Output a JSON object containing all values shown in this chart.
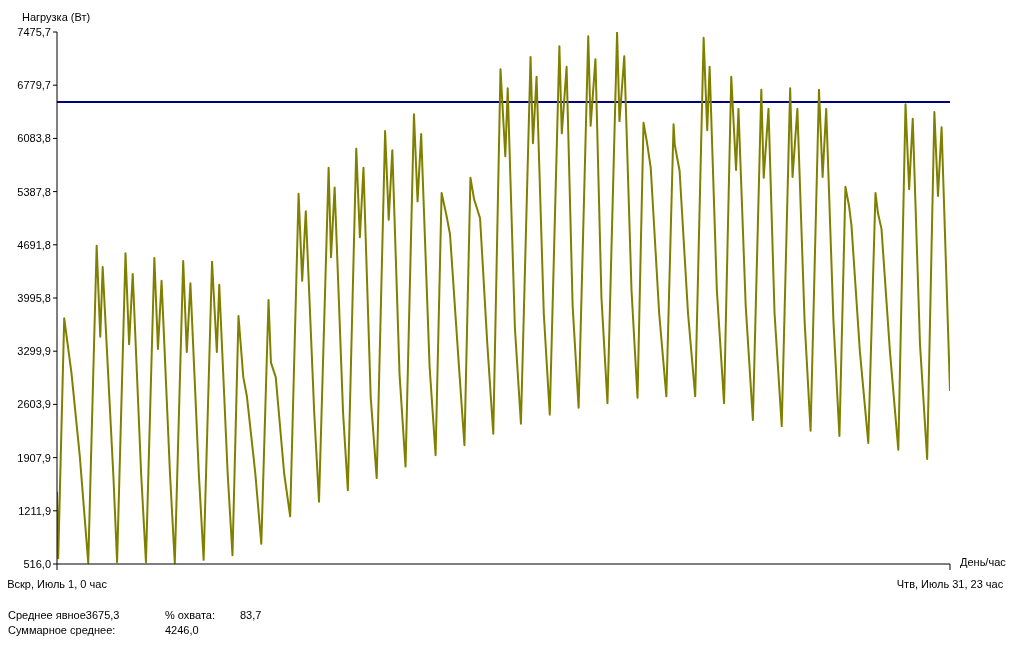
{
  "chart_data": {
    "type": "line",
    "ylabel": "Нагрузка (Вт)",
    "xlabel": "День/час",
    "categories": [
      "Вскр, Июль 1, 0 час",
      null,
      null,
      null,
      null,
      null,
      null,
      null,
      null,
      null,
      null,
      null,
      null,
      null,
      null,
      null,
      null,
      null,
      null,
      null,
      null,
      null,
      null,
      null,
      null,
      null,
      null,
      null,
      null,
      null,
      null,
      null,
      null,
      null,
      null,
      null,
      null,
      null,
      null,
      null,
      null,
      null,
      null,
      null,
      null,
      null,
      null,
      null,
      null,
      null,
      null,
      null,
      null,
      null,
      null,
      null,
      null,
      null,
      null,
      null,
      null,
      null,
      null,
      null,
      null,
      null,
      null,
      null,
      null,
      null,
      null,
      null,
      null,
      null,
      null,
      null,
      null,
      null,
      null,
      null,
      null,
      null,
      null,
      null,
      null,
      null,
      null,
      null,
      null,
      null,
      null,
      null,
      null,
      null,
      null,
      null,
      null,
      null,
      null,
      null,
      null,
      null,
      null,
      null,
      null,
      null,
      null,
      null,
      null,
      null,
      null,
      null,
      null,
      null,
      null,
      null,
      null,
      null,
      null,
      null,
      null,
      null,
      null,
      null,
      null,
      null,
      null,
      null,
      null,
      null,
      null,
      null,
      null,
      null,
      null,
      null,
      null,
      null,
      null,
      null,
      null,
      null,
      null,
      null,
      null,
      null,
      null,
      null,
      null,
      null,
      null,
      null,
      null,
      null,
      null,
      null,
      null,
      null,
      null,
      null,
      null,
      null,
      null,
      null,
      null,
      null,
      null,
      null,
      null,
      null,
      null,
      null,
      null,
      null,
      null,
      null,
      null,
      null,
      null,
      null,
      null,
      null,
      null,
      null,
      null,
      null,
      null,
      null,
      null,
      null,
      null,
      null,
      null,
      null,
      null,
      null,
      null,
      null,
      null,
      null,
      null,
      null,
      null,
      null,
      null,
      null,
      null,
      null,
      null,
      null,
      null,
      null,
      null,
      null,
      null,
      null,
      null,
      null,
      null,
      null,
      null,
      null,
      null,
      null,
      null,
      null,
      null,
      null,
      null,
      null,
      null,
      null,
      null,
      null,
      null,
      null,
      null,
      null,
      null,
      null,
      null,
      null,
      null,
      null,
      null,
      null,
      null,
      null,
      null,
      null,
      null,
      null,
      null,
      null,
      null,
      null,
      null,
      null,
      null,
      null,
      null,
      null,
      null,
      null,
      null,
      null,
      null,
      null,
      null,
      null,
      null,
      null,
      null,
      null,
      null,
      null,
      null,
      null,
      null,
      null,
      null,
      null,
      null,
      null,
      null,
      null,
      null,
      null,
      null,
      null,
      null,
      null,
      null,
      null,
      null,
      null,
      null,
      null,
      null,
      null,
      null,
      null,
      null,
      null,
      null,
      null,
      null,
      null,
      null,
      null,
      null,
      null,
      null,
      null,
      null,
      null,
      null,
      null,
      null,
      null,
      null,
      null,
      null,
      null,
      null,
      null,
      null,
      null,
      null,
      null,
      null,
      null,
      null,
      null,
      null,
      null,
      null,
      null,
      null,
      null,
      null,
      null,
      null,
      null,
      null,
      null,
      null,
      null,
      null,
      null,
      null,
      null,
      null,
      null,
      null,
      null,
      null,
      null,
      null,
      null,
      null,
      null,
      null,
      null,
      null,
      null,
      null,
      null,
      null,
      null,
      null,
      null,
      null,
      null,
      null,
      null,
      null,
      null,
      null,
      null,
      null,
      null,
      null,
      null,
      null,
      null,
      null,
      null,
      null,
      null,
      null,
      null,
      null,
      null,
      null,
      null,
      null,
      null,
      null,
      null,
      null,
      null,
      null,
      null,
      null,
      null,
      null,
      null,
      null,
      null,
      null,
      null,
      null,
      null,
      null,
      null,
      null,
      null,
      null,
      null,
      null,
      null,
      null,
      null,
      null,
      null,
      null,
      null,
      null,
      null,
      null,
      null,
      null,
      null,
      null,
      null,
      null,
      null,
      null,
      null,
      null,
      null,
      null,
      null,
      null,
      null,
      null,
      null,
      null,
      null,
      null,
      null,
      null,
      null,
      null,
      null,
      null,
      null,
      null,
      null,
      null,
      null,
      null,
      null,
      null,
      null,
      null,
      null,
      null,
      null,
      null,
      null,
      null,
      null,
      null,
      null,
      null,
      null,
      null,
      null,
      null,
      null,
      null,
      null,
      null,
      null,
      null,
      null,
      null,
      null,
      null,
      null,
      null,
      null,
      null,
      null,
      null,
      null,
      null,
      null,
      null,
      null,
      null,
      null,
      null,
      null,
      null,
      null,
      null,
      null,
      null,
      null,
      null,
      null,
      null,
      null,
      null,
      null,
      null,
      null,
      null,
      null,
      null,
      null,
      null,
      null,
      null,
      null,
      null,
      null,
      null,
      null,
      null,
      null,
      null,
      null,
      null,
      null,
      null,
      null,
      null,
      null,
      null,
      null,
      null,
      null,
      null,
      null,
      null,
      null,
      null,
      null,
      null,
      null,
      null,
      null,
      null,
      null,
      null,
      null,
      null,
      null,
      null,
      null,
      null,
      null,
      null,
      null,
      null,
      null,
      null,
      null,
      null,
      null,
      null,
      null,
      null,
      null,
      null,
      null,
      null,
      null,
      null,
      null,
      null,
      null,
      null,
      null,
      null,
      null,
      null,
      null,
      null,
      null,
      null,
      null,
      null,
      null,
      null,
      null,
      null,
      null,
      null,
      null,
      null,
      null,
      null,
      null,
      null,
      null,
      null,
      null,
      null,
      null,
      null,
      null,
      null,
      null,
      null,
      null,
      null,
      null,
      null,
      null,
      null,
      null,
      null,
      null,
      null,
      null,
      null,
      null,
      null,
      null,
      null,
      null,
      null,
      null,
      null,
      null,
      null,
      null,
      null,
      null,
      null,
      null,
      null,
      null,
      null,
      null,
      null,
      null,
      null,
      null,
      null,
      null,
      null,
      null,
      null,
      null,
      null,
      null,
      null,
      null,
      null,
      null,
      null,
      null,
      null,
      null,
      null,
      null,
      null,
      null,
      null,
      null,
      null,
      null,
      null,
      null,
      null,
      null,
      null,
      null,
      null,
      null,
      null,
      null,
      null,
      null,
      null,
      null,
      null,
      null,
      null,
      null,
      null,
      null,
      null,
      null,
      null,
      null,
      null,
      null,
      null,
      null,
      null,
      null,
      null,
      null,
      null,
      null,
      null,
      null,
      null,
      null,
      null,
      null,
      null,
      null,
      null,
      null,
      null,
      null,
      null,
      null,
      null,
      null,
      null,
      null,
      null,
      null,
      null,
      null,
      null,
      null,
      null,
      null,
      null,
      null,
      null,
      null,
      null,
      "Чтв, Июль 31, 23 час"
    ],
    "ylim": [
      516.0,
      7475.7
    ],
    "yticks": [
      {
        "value": 516.0,
        "label": "516,0"
      },
      {
        "value": 1211.9,
        "label": "1211,9"
      },
      {
        "value": 1907.9,
        "label": "1907,9"
      },
      {
        "value": 2603.9,
        "label": "2603,9"
      },
      {
        "value": 3299.9,
        "label": "3299,9"
      },
      {
        "value": 3995.8,
        "label": "3995,8"
      },
      {
        "value": 4691.8,
        "label": "4691,8"
      },
      {
        "value": 5387.8,
        "label": "5387,8"
      },
      {
        "value": 6083.8,
        "label": "6083,8"
      },
      {
        "value": 6779.7,
        "label": "6779,7"
      },
      {
        "value": 7475.7,
        "label": "7475,7"
      }
    ],
    "grid": false,
    "legend": false,
    "marker": "none",
    "line_style": "solid",
    "series": [
      {
        "color": "#808000",
        "values": [
          1460,
          590,
          null,
          null,
          null,
          null,
          3730,
          null,
          null,
          null,
          null,
          null,
          3020,
          null,
          null,
          null,
          null,
          null,
          null,
          1920,
          null,
          null,
          null,
          null,
          null,
          null,
          530,
          null,
          null,
          null,
          null,
          null,
          null,
          4680,
          null,
          null,
          3490,
          null,
          4400,
          null,
          null,
          null,
          null,
          null,
          null,
          null,
          null,
          1640,
          null,
          null,
          540,
          null,
          null,
          null,
          null,
          null,
          null,
          4580,
          null,
          null,
          3390,
          null,
          null,
          4310,
          null,
          null,
          null,
          null,
          null,
          null,
          1700,
          null,
          null,
          null,
          540,
          null,
          null,
          null,
          null,
          null,
          null,
          4520,
          null,
          null,
          3330,
          null,
          null,
          4220,
          null,
          null,
          null,
          null,
          null,
          null,
          1700,
          null,
          null,
          null,
          530,
          null,
          null,
          null,
          null,
          null,
          null,
          4480,
          null,
          null,
          3290,
          null,
          null,
          4190,
          null,
          null,
          null,
          null,
          null,
          null,
          1700,
          null,
          null,
          null,
          570,
          null,
          null,
          null,
          null,
          null,
          null,
          4470,
          null,
          null,
          null,
          3290,
          null,
          4170,
          null,
          null,
          null,
          null,
          null,
          null,
          1700,
          null,
          null,
          null,
          630,
          null,
          null,
          null,
          null,
          3760,
          null,
          null,
          null,
          2960,
          null,
          null,
          2710,
          null,
          null,
          null,
          null,
          null,
          null,
          1700,
          null,
          null,
          null,
          null,
          780,
          null,
          null,
          null,
          null,
          null,
          3970,
          null,
          3150,
          null,
          null,
          null,
          2960,
          null,
          null,
          null,
          null,
          null,
          null,
          1700,
          null,
          null,
          null,
          null,
          1140,
          null,
          null,
          null,
          null,
          null,
          null,
          5360,
          null,
          null,
          4220,
          null,
          null,
          5130,
          null,
          null,
          null,
          null,
          null,
          null,
          2500,
          null,
          null,
          null,
          1330,
          null,
          null,
          null,
          null,
          null,
          null,
          null,
          5700,
          null,
          4530,
          null,
          null,
          5440,
          null,
          null,
          null,
          null,
          null,
          null,
          2500,
          null,
          null,
          null,
          1480,
          null,
          null,
          null,
          null,
          null,
          null,
          5950,
          null,
          null,
          4790,
          null,
          null,
          5700,
          null,
          null,
          null,
          null,
          null,
          2700,
          null,
          null,
          null,
          null,
          1640,
          null,
          null,
          null,
          null,
          null,
          null,
          6180,
          null,
          null,
          5020,
          null,
          null,
          5930,
          null,
          null,
          null,
          null,
          null,
          3000,
          null,
          null,
          null,
          null,
          1790,
          null,
          null,
          null,
          null,
          null,
          null,
          6400,
          null,
          null,
          5260,
          null,
          null,
          6140,
          null,
          null,
          null,
          null,
          null,
          null,
          3100,
          null,
          null,
          null,
          null,
          1940,
          null,
          null,
          null,
          null,
          5370,
          null,
          null,
          null,
          5080,
          null,
          null,
          4830,
          null,
          null,
          null,
          null,
          null,
          null,
          3200,
          null,
          null,
          null,
          null,
          2070,
          null,
          null,
          null,
          null,
          5570,
          null,
          null,
          5290,
          null,
          null,
          null,
          null,
          5040,
          null,
          null,
          null,
          null,
          null,
          3400,
          null,
          null,
          null,
          null,
          2220,
          null,
          null,
          null,
          null,
          null,
          6990,
          null,
          null,
          null,
          5850,
          null,
          6740,
          null,
          null,
          null,
          null,
          null,
          3600,
          null,
          null,
          null,
          null,
          2350,
          null,
          null,
          null,
          null,
          null,
          null,
          null,
          7150,
          null,
          6020,
          null,
          null,
          6890,
          null,
          null,
          null,
          null,
          null,
          3800,
          null,
          null,
          null,
          null,
          2470,
          null,
          null,
          null,
          null,
          null,
          null,
          null,
          7290,
          null,
          6150,
          null,
          null,
          null,
          7020,
          null,
          null,
          null,
          null,
          3900,
          null,
          null,
          null,
          null,
          2560,
          null,
          null,
          null,
          null,
          null,
          null,
          null,
          7420,
          null,
          6250,
          null,
          null,
          null,
          7120,
          null,
          null,
          null,
          null,
          4000,
          null,
          null,
          null,
          null,
          2620,
          null,
          null,
          null,
          null,
          null,
          null,
          null,
          7470,
          null,
          6310,
          null,
          null,
          null,
          7160,
          null,
          null,
          null,
          null,
          null,
          4100,
          null,
          null,
          null,
          null,
          2690,
          null,
          null,
          null,
          null,
          6290,
          null,
          null,
          6020,
          null,
          null,
          5700,
          null,
          null,
          null,
          null,
          null,
          null,
          3800,
          null,
          null,
          null,
          null,
          null,
          2710,
          null,
          null,
          null,
          null,
          null,
          6270,
          6000,
          null,
          null,
          null,
          5660,
          null,
          null,
          null,
          null,
          null,
          null,
          3800,
          null,
          null,
          null,
          null,
          null,
          2710,
          null,
          null,
          null,
          null,
          null,
          null,
          7400,
          null,
          null,
          6190,
          null,
          7020,
          null,
          null,
          null,
          null,
          null,
          4100,
          null,
          null,
          null,
          null,
          null,
          2620,
          null,
          null,
          null,
          null,
          null,
          6890,
          null,
          null,
          null,
          5670,
          null,
          6470,
          null,
          null,
          null,
          null,
          null,
          3900,
          null,
          null,
          null,
          null,
          null,
          2400,
          null,
          null,
          null,
          null,
          null,
          null,
          6720,
          null,
          5570,
          null,
          null,
          null,
          6470,
          null,
          null,
          null,
          null,
          3800,
          null,
          null,
          null,
          null,
          null,
          2320,
          null,
          null,
          null,
          null,
          null,
          null,
          6740,
          null,
          5580,
          null,
          null,
          null,
          6470,
          null,
          null,
          null,
          null,
          null,
          3700,
          null,
          null,
          null,
          null,
          2260,
          null,
          null,
          null,
          null,
          null,
          null,
          6720,
          null,
          null,
          5580,
          null,
          null,
          6470,
          null,
          null,
          null,
          null,
          null,
          3700,
          null,
          null,
          null,
          null,
          2190,
          null,
          null,
          null,
          null,
          5450,
          null,
          null,
          5200,
          null,
          4950,
          null,
          null,
          null,
          null,
          null,
          null,
          3300,
          null,
          null,
          null,
          null,
          null,
          null,
          2100,
          null,
          null,
          null,
          null,
          null,
          5370,
          null,
          5110,
          null,
          null,
          4900,
          null,
          null,
          null,
          null,
          null,
          null,
          3300,
          null,
          null,
          null,
          null,
          null,
          null,
          2010,
          null,
          null,
          null,
          null,
          null,
          6530,
          null,
          null,
          5420,
          null,
          null,
          6340,
          null,
          null,
          null,
          null,
          null,
          3400,
          null,
          null,
          null,
          null,
          null,
          1890,
          null,
          null,
          null,
          null,
          null,
          6430,
          null,
          null,
          5330,
          null,
          null,
          6230,
          null,
          null,
          null,
          null,
          null,
          null,
          2780
        ]
      }
    ],
    "ref_lines": [
      {
        "axis": "y",
        "value": 6560,
        "color": "#000080"
      }
    ],
    "annotations": [
      "Среднее явное3675,3",
      "% охвата:",
      "83,7",
      "Суммарное среднее:",
      "4246,0"
    ]
  }
}
